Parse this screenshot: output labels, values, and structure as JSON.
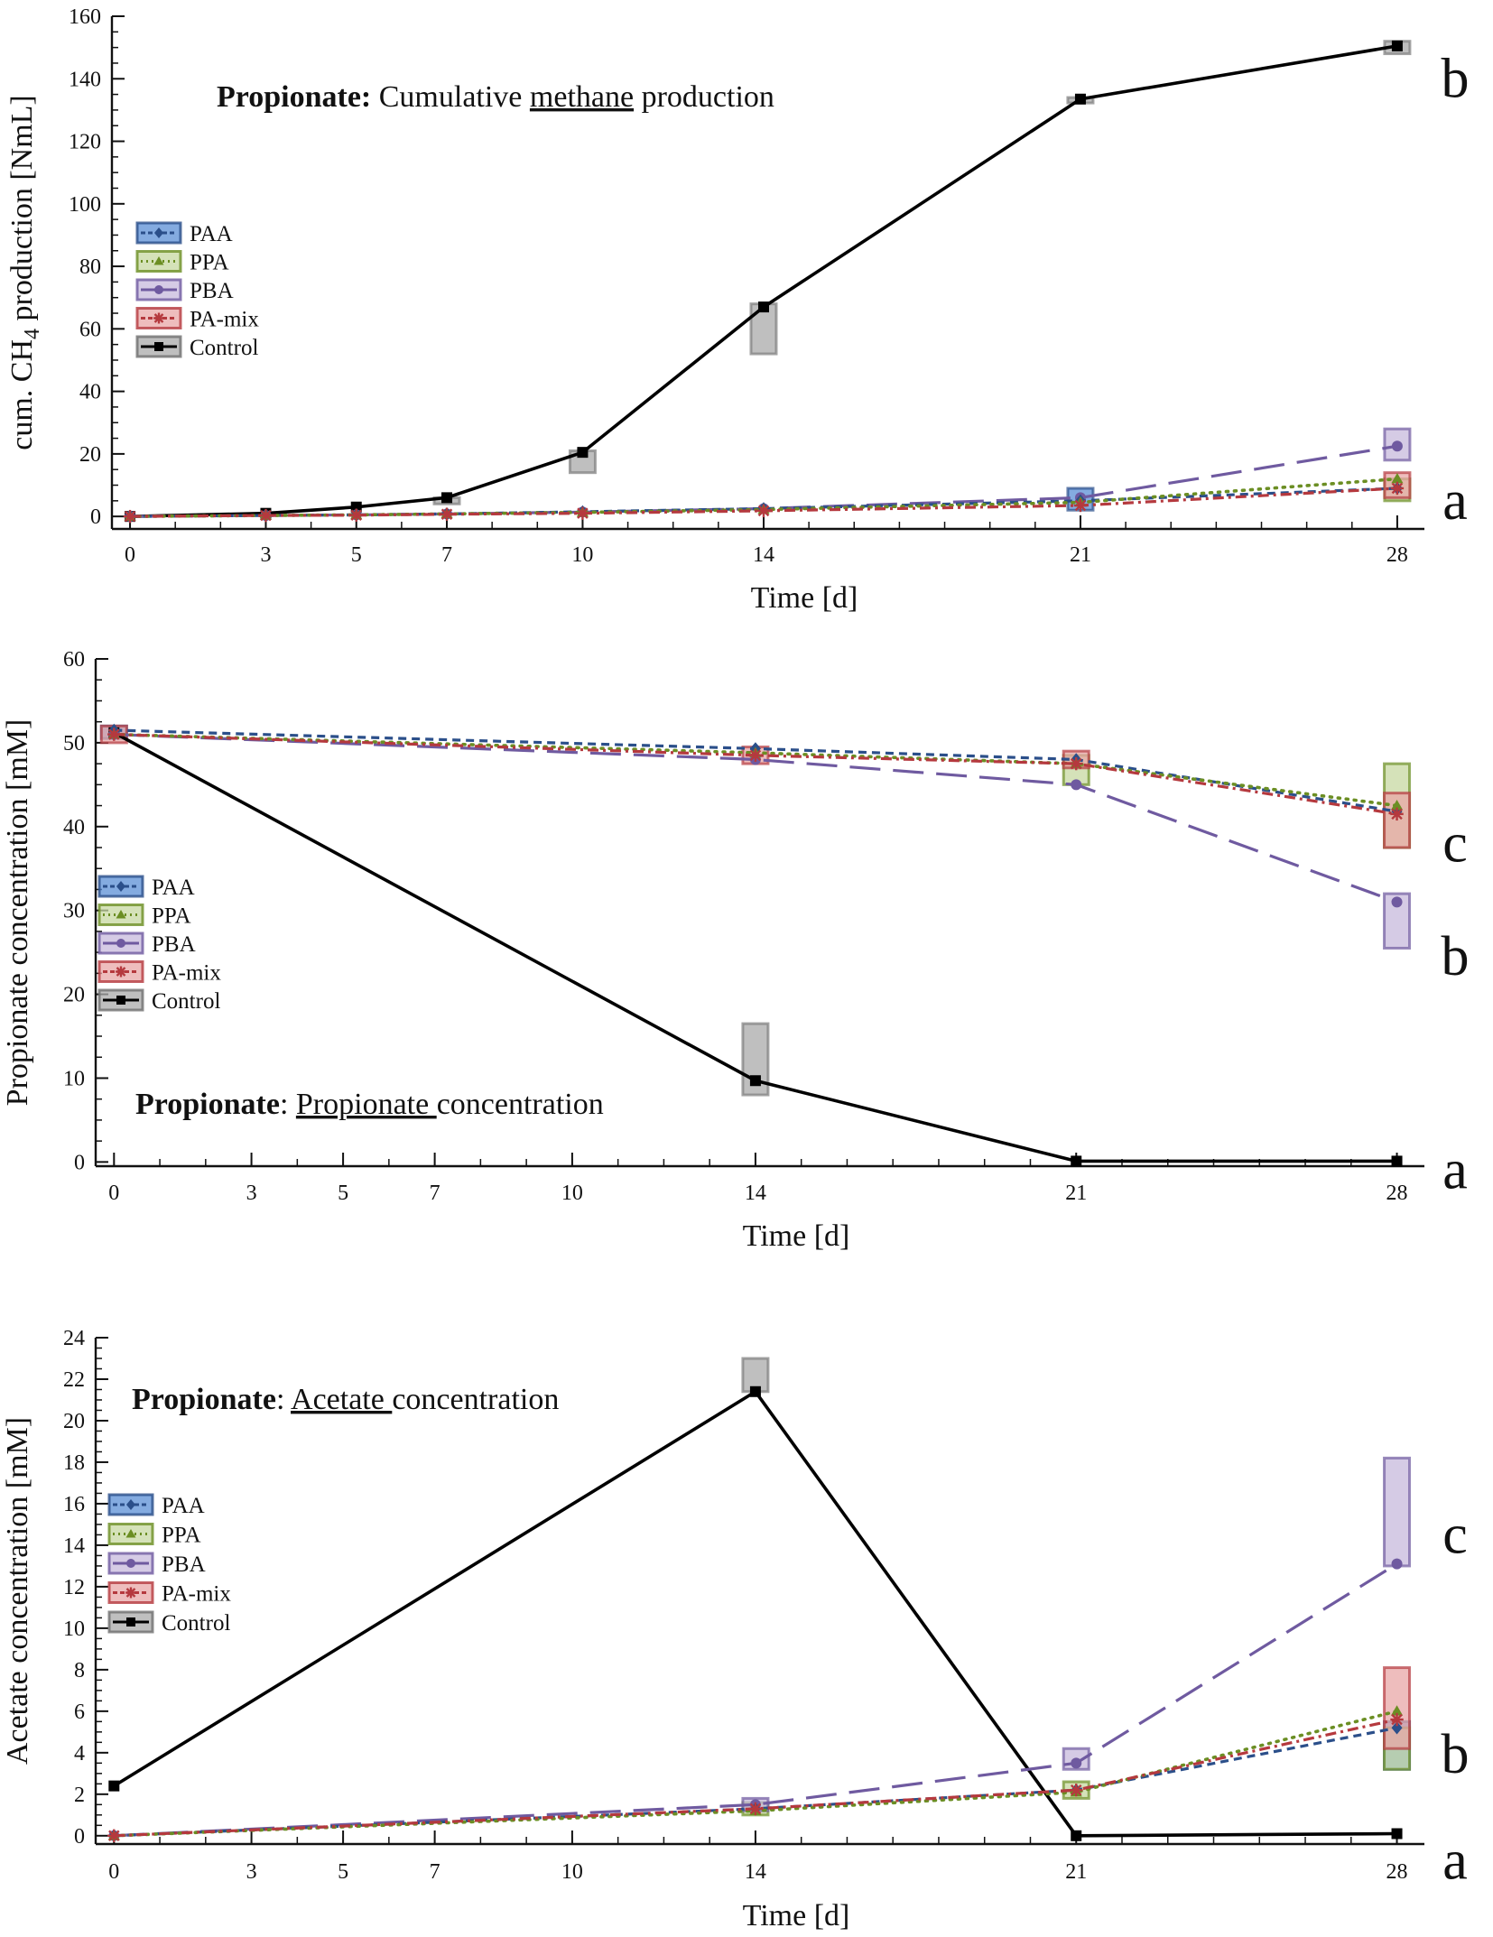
{
  "chart_data": [
    {
      "type": "line",
      "title": {
        "bold": "Propionate:",
        "pre": " Cumulative ",
        "underlined": "methane",
        "post": " production"
      },
      "xlabel": "Time [d]",
      "ylabel": {
        "main": "cum. CH",
        "sub": "4",
        "rest": " production [NmL]"
      },
      "x_ticks": [
        0,
        3,
        5,
        7,
        10,
        14,
        21,
        28
      ],
      "y_ticks": [
        0,
        20,
        40,
        60,
        80,
        100,
        120,
        140,
        160
      ],
      "xlim": [
        -0.4,
        28.6
      ],
      "ylim": [
        -4,
        160
      ],
      "legend": [
        "PAA",
        "PPA",
        "PBA",
        "PA-mix",
        "Control"
      ],
      "series": [
        {
          "name": "PAA",
          "x": [
            0,
            3,
            5,
            7,
            10,
            14,
            21,
            28
          ],
          "y": [
            0,
            0.3,
            0.5,
            0.8,
            1.5,
            2.5,
            5,
            9
          ],
          "ci": [
            [
              21,
              2,
              9
            ]
          ]
        },
        {
          "name": "PPA",
          "x": [
            0,
            3,
            5,
            7,
            10,
            14,
            21,
            28
          ],
          "y": [
            0,
            0.3,
            0.5,
            0.8,
            1.3,
            2.2,
            4.5,
            12
          ],
          "ci": [
            [
              28,
              5,
              12
            ]
          ]
        },
        {
          "name": "PBA",
          "x": [
            0,
            3,
            5,
            7,
            10,
            14,
            21,
            28
          ],
          "y": [
            0,
            0.3,
            0.5,
            0.8,
            1.4,
            2.5,
            6,
            22.5
          ],
          "ci": [
            [
              28,
              18,
              28
            ]
          ]
        },
        {
          "name": "PA-mix",
          "x": [
            0,
            3,
            5,
            7,
            10,
            14,
            21,
            28
          ],
          "y": [
            0,
            0.3,
            0.4,
            0.7,
            1.0,
            1.8,
            3.5,
            9
          ],
          "ci": [
            [
              28,
              6,
              14
            ]
          ]
        },
        {
          "name": "Control",
          "x": [
            0,
            3,
            5,
            7,
            10,
            14,
            21,
            28
          ],
          "y": [
            0,
            1,
            3,
            6,
            20.5,
            67,
            133.5,
            150.5
          ],
          "ci": [
            [
              7,
              4,
              6
            ],
            [
              10,
              14,
              21
            ],
            [
              14,
              52,
              68
            ],
            [
              21,
              133,
              134
            ],
            [
              28,
              148,
              152
            ]
          ]
        }
      ],
      "significance": [
        {
          "label": "b",
          "y": 140
        },
        {
          "label": "a",
          "y": 5
        }
      ]
    },
    {
      "type": "line",
      "title": {
        "bold": "Propionate",
        "pre": ": ",
        "underlined": "Propionate ",
        "post": "concentration"
      },
      "xlabel": "Time [d]",
      "ylabel": {
        "main": "Propionate concentration [mM]",
        "sub": "",
        "rest": ""
      },
      "x_ticks": [
        0,
        3,
        5,
        7,
        10,
        14,
        21,
        28
      ],
      "y_ticks": [
        0,
        10,
        20,
        30,
        40,
        50,
        60
      ],
      "xlim": [
        -0.4,
        28.6
      ],
      "ylim": [
        -0.5,
        60
      ],
      "legend": [
        "PAA",
        "PPA",
        "PBA",
        "PA-mix",
        "Control"
      ],
      "series": [
        {
          "name": "PAA",
          "x": [
            0,
            14,
            21,
            28
          ],
          "y": [
            51.5,
            49.3,
            48.0,
            41.8
          ],
          "ci": [
            [
              0,
              50.5,
              52
            ]
          ]
        },
        {
          "name": "PPA",
          "x": [
            0,
            14,
            21,
            28
          ],
          "y": [
            51.0,
            48.8,
            47.5,
            42.5
          ],
          "ci": [
            [
              21,
              45,
              48.5
            ],
            [
              28,
              37.5,
              47.5
            ]
          ]
        },
        {
          "name": "PBA",
          "x": [
            0,
            14,
            21,
            28
          ],
          "y": [
            51.0,
            48.0,
            45.0,
            31.0
          ],
          "ci": [
            [
              28,
              25.5,
              32
            ]
          ]
        },
        {
          "name": "PA-mix",
          "x": [
            0,
            14,
            21,
            28
          ],
          "y": [
            51.0,
            48.5,
            47.5,
            41.5
          ],
          "ci": [
            [
              0,
              50,
              52
            ],
            [
              14,
              47.5,
              49.5
            ],
            [
              21,
              47,
              49
            ],
            [
              28,
              37.5,
              44
            ]
          ]
        },
        {
          "name": "Control",
          "x": [
            0,
            14,
            21,
            28
          ],
          "y": [
            51.2,
            9.7,
            0.1,
            0.1
          ],
          "ci": [
            [
              14,
              8,
              16.5
            ]
          ]
        }
      ],
      "significance": [
        {
          "label": "c",
          "y": 38
        },
        {
          "label": "b",
          "y": 24.5
        },
        {
          "label": "a",
          "y": -1
        }
      ]
    },
    {
      "type": "line",
      "title": {
        "bold": "Propionate",
        "pre": ": ",
        "underlined": "Acetate ",
        "post": "concentration"
      },
      "xlabel": "Time [d]",
      "ylabel": {
        "main": "Acetate concentration [mM]",
        "sub": "",
        "rest": ""
      },
      "x_ticks": [
        0,
        3,
        5,
        7,
        10,
        14,
        21,
        28
      ],
      "y_ticks": [
        0,
        2,
        4,
        6,
        8,
        10,
        12,
        14,
        16,
        18,
        20,
        22,
        24
      ],
      "xlim": [
        -0.4,
        28.6
      ],
      "ylim": [
        -0.4,
        24
      ],
      "legend": [
        "PAA",
        "PPA",
        "PBA",
        "PA-mix",
        "Control"
      ],
      "series": [
        {
          "name": "PAA",
          "x": [
            0,
            14,
            21,
            28
          ],
          "y": [
            0,
            1.3,
            2.2,
            5.2
          ],
          "ci": [
            [
              28,
              3.2,
              5.5
            ]
          ]
        },
        {
          "name": "PPA",
          "x": [
            0,
            14,
            21,
            28
          ],
          "y": [
            0,
            1.2,
            2.1,
            6.0
          ],
          "ci": [
            [
              14,
              1.0,
              1.6
            ],
            [
              21,
              1.8,
              2.6
            ],
            [
              28,
              3.2,
              5.2
            ]
          ]
        },
        {
          "name": "PBA",
          "x": [
            0,
            14,
            21,
            28
          ],
          "y": [
            0,
            1.5,
            3.5,
            13.1
          ],
          "ci": [
            [
              14,
              1.2,
              1.8
            ],
            [
              21,
              3.2,
              4.2
            ],
            [
              28,
              13,
              18.2
            ]
          ]
        },
        {
          "name": "PA-mix",
          "x": [
            0,
            14,
            21,
            28
          ],
          "y": [
            0,
            1.3,
            2.2,
            5.6
          ],
          "ci": [
            [
              28,
              4.2,
              8.1
            ]
          ]
        },
        {
          "name": "Control",
          "x": [
            0,
            14,
            21,
            28
          ],
          "y": [
            2.4,
            21.4,
            0.0,
            0.1
          ],
          "ci": [
            [
              14,
              21.4,
              23.0
            ]
          ]
        }
      ],
      "significance": [
        {
          "label": "c",
          "y": 14.5
        },
        {
          "label": "b",
          "y": 3.9
        },
        {
          "label": "a",
          "y": -1.2
        }
      ]
    }
  ],
  "colors": {
    "PAA": "#2b4f8a",
    "PAA_fill": "#5b8fd6",
    "PPA": "#6b8e23",
    "PPA_fill": "#c7d8a1",
    "PBA": "#6f5aa0",
    "PBA_fill": "#c7b9dc",
    "PA-mix": "#b5393e",
    "PA-mix_fill": "#e8a7a7",
    "Control": "#000000",
    "Control_fill": "#a9a9a9"
  }
}
